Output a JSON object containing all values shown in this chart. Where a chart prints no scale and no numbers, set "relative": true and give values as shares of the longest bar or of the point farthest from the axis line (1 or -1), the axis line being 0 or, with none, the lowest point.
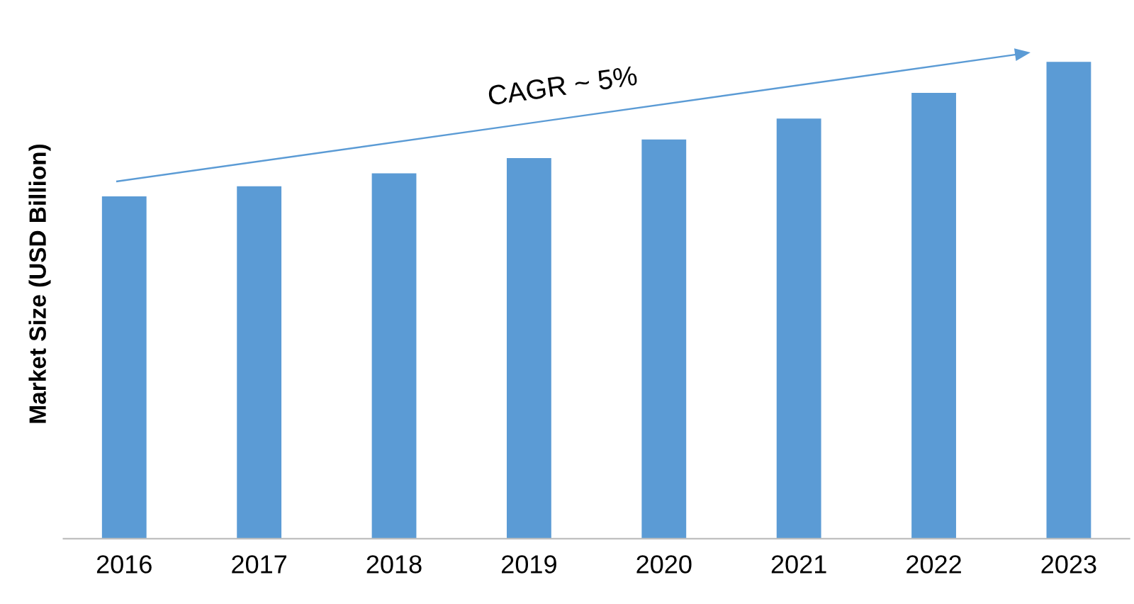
{
  "chart_data": {
    "type": "bar",
    "relative": true,
    "ylabel": "Market Size (USD Billion)",
    "categories": [
      "2016",
      "2017",
      "2018",
      "2019",
      "2020",
      "2021",
      "2022",
      "2023"
    ],
    "values": [
      0.718,
      0.739,
      0.766,
      0.798,
      0.837,
      0.881,
      0.935,
      1
    ],
    "color": "#5b9bd5",
    "grid": false,
    "annotations": [
      "CAGR ~ 5%"
    ]
  }
}
